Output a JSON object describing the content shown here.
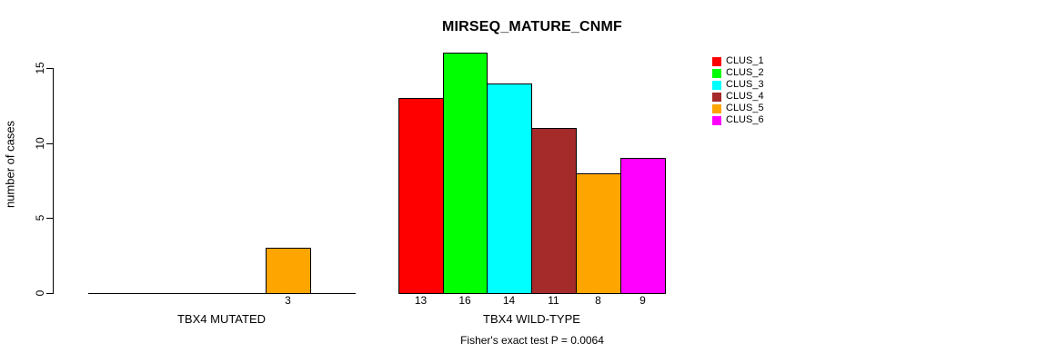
{
  "title": "MIRSEQ_MATURE_CNMF",
  "footer": "Fisher's exact test P = 0.0064",
  "chart_data": {
    "type": "bar",
    "title": "MIRSEQ_MATURE_CNMF",
    "xlabel": "",
    "ylabel": "number of cases",
    "ylim": [
      0,
      16
    ],
    "yticks": [
      0,
      5,
      10,
      15
    ],
    "grid": false,
    "legend_position": "right-outside",
    "series": [
      {
        "name": "CLUS_1",
        "color": "#FF0000"
      },
      {
        "name": "CLUS_2",
        "color": "#00FF00"
      },
      {
        "name": "CLUS_3",
        "color": "#00FFFF"
      },
      {
        "name": "CLUS_4",
        "color": "#A52A2A"
      },
      {
        "name": "CLUS_5",
        "color": "#FFA500"
      },
      {
        "name": "CLUS_6",
        "color": "#FF00FF"
      }
    ],
    "groups": [
      {
        "label": "TBX4 MUTATED",
        "values": [
          0,
          0,
          0,
          0,
          3,
          0
        ]
      },
      {
        "label": "TBX4 WILD-TYPE",
        "values": [
          13,
          16,
          14,
          11,
          8,
          9
        ]
      }
    ],
    "bar_border_color": "#000000",
    "annotation": "Fisher's exact test P = 0.0064"
  }
}
